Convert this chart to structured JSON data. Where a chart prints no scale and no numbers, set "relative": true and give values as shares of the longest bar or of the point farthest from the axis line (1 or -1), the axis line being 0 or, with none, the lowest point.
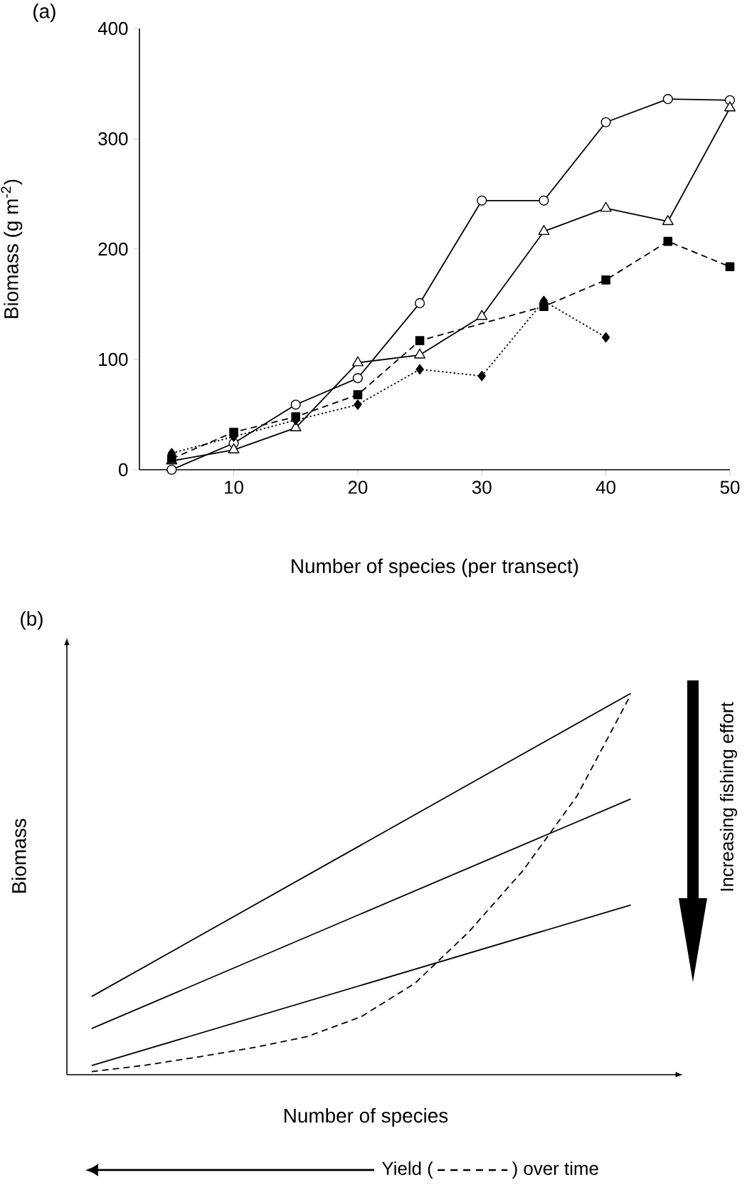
{
  "chart_data": [
    {
      "type": "line",
      "title": "(a)",
      "xlabel": "Number of species (per transect)",
      "ylabel": "Biomass (g m$^{-2}$)",
      "xlim": [
        2.4,
        50
      ],
      "ylim": [
        0,
        400
      ],
      "xticks": [
        10,
        20,
        30,
        40,
        50
      ],
      "yticks": [
        0,
        100,
        200,
        300,
        400
      ],
      "x": [
        5,
        10,
        15,
        20,
        25,
        30,
        35,
        40,
        45,
        50
      ],
      "series": [
        {
          "color": "#000000",
          "marker": "circle",
          "line_style": "solid",
          "values": [
            0,
            24,
            59,
            83,
            151,
            244,
            244,
            315,
            336,
            335
          ]
        },
        {
          "color": "#000000",
          "marker": "triangle",
          "line_style": "solid",
          "values": [
            8,
            18,
            38,
            97,
            104,
            139,
            216,
            237,
            225,
            328
          ]
        },
        {
          "color": "#000000",
          "marker": "square",
          "line_style": "dashed",
          "values": [
            10,
            34,
            48,
            68,
            117,
            null,
            148,
            172,
            207,
            184
          ]
        },
        {
          "color": "#000000",
          "marker": "diamond",
          "line_style": "dotted",
          "x": [
            5,
            10,
            15,
            20,
            25,
            30,
            35,
            40
          ],
          "values": [
            15,
            30,
            45,
            59,
            91,
            85,
            153,
            120
          ]
        }
      ]
    },
    {
      "type": "line",
      "title": "(b)",
      "xlabel": "Number of species",
      "ylabel": "Biomass",
      "relative": true,
      "categories": [
        null,
        null,
        null,
        null,
        null,
        null,
        null,
        null,
        null,
        null,
        null
      ],
      "annotations": [
        "Increasing fishing effort",
        "Yield (",
        ") over time"
      ],
      "series": [
        {
          "color": "#000000",
          "line_style": "solid",
          "values": [
            0.205,
            null,
            null,
            null,
            null,
            null,
            null,
            null,
            null,
            null,
            1.0
          ]
        },
        {
          "color": "#000000",
          "line_style": "solid",
          "values": [
            0.121,
            null,
            null,
            null,
            null,
            null,
            null,
            null,
            null,
            null,
            0.723
          ]
        },
        {
          "color": "#000000",
          "line_style": "solid",
          "values": [
            0.024,
            null,
            null,
            null,
            null,
            null,
            null,
            null,
            null,
            null,
            0.445
          ]
        },
        {
          "color": "#000000",
          "line_style": "dashed",
          "values": [
            0.008,
            0.025,
            0.047,
            0.071,
            0.1,
            0.152,
            0.24,
            0.375,
            0.535,
            0.73,
            0.996
          ]
        }
      ]
    }
  ]
}
